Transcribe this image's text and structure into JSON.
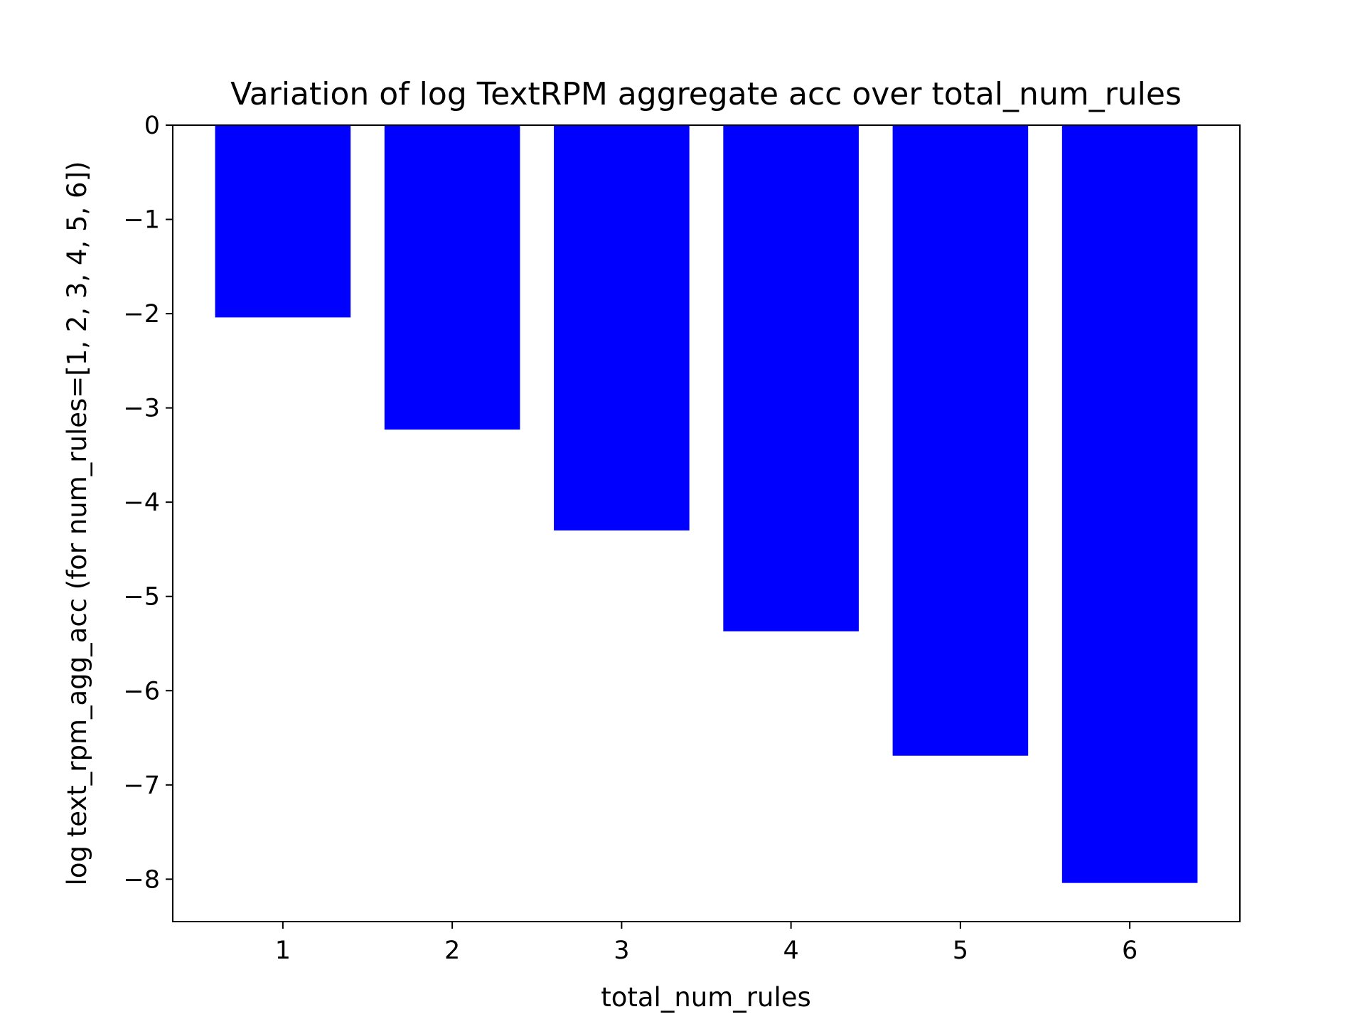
{
  "chart_data": {
    "type": "bar",
    "title": "Variation of log TextRPM aggregate acc over total_num_rules",
    "xlabel": "total_num_rules",
    "ylabel": "log text_rpm_agg_acc (for num_rules=[1, 2, 3, 4, 5, 6])",
    "categories": [
      "1",
      "2",
      "3",
      "4",
      "5",
      "6"
    ],
    "values": [
      -2.04,
      -3.23,
      -4.3,
      -5.37,
      -6.69,
      -8.04
    ],
    "bar_color": "#0000ff",
    "ylim": [
      -8.45,
      0
    ],
    "yticks": [
      0,
      -1,
      -2,
      -3,
      -4,
      -5,
      -6,
      -7,
      -8
    ],
    "ytick_labels": [
      "0",
      "−1",
      "−2",
      "−3",
      "−4",
      "−5",
      "−6",
      "−7",
      "−8"
    ],
    "grid": false,
    "legend": "none"
  }
}
